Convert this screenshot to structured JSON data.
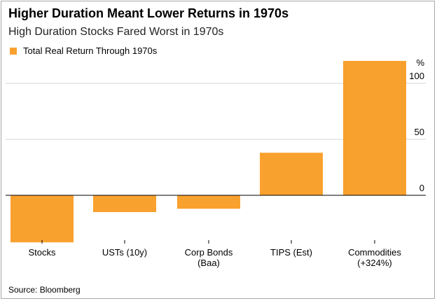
{
  "chart_data": {
    "type": "bar",
    "title": "Higher Duration Meant Lower Returns in 1970s",
    "subtitle": "High Duration Stocks Fared Worst in 1970s",
    "source": "Source: Bloomberg",
    "unit_label": "%",
    "categories": [
      [
        "Stocks"
      ],
      [
        "USTs (10y)"
      ],
      [
        "Corp Bonds",
        "(Baa)"
      ],
      [
        "TIPS (Est)"
      ],
      [
        "Commodities",
        "(+324%)"
      ]
    ],
    "series": [
      {
        "name": "Total Real Return Through 1970s",
        "values": [
          -42,
          -15,
          -12,
          38,
          120
        ],
        "color": "#f9a12e"
      }
    ],
    "y_ticks": [
      0,
      50,
      100
    ],
    "ylim": [
      -45,
      125
    ],
    "axis_side": "right",
    "grid": true,
    "legend_position": "top-left"
  }
}
